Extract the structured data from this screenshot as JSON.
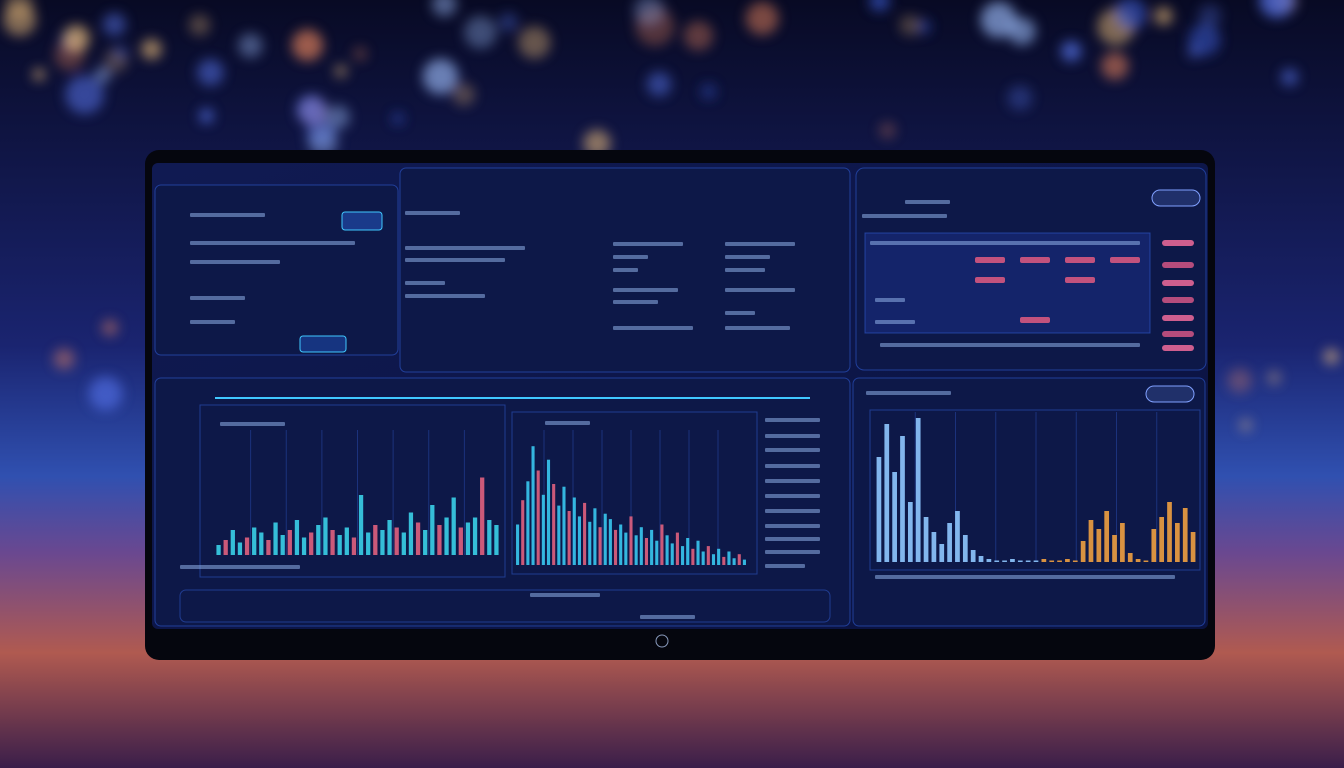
{
  "charts": [
    {
      "type": "bar",
      "color": "#3ad0e8",
      "accent": "#e0607e",
      "ylim": [
        0,
        100
      ],
      "values": [
        8,
        12,
        20,
        10,
        14,
        22,
        18,
        12,
        26,
        16,
        20,
        28,
        14,
        18,
        24,
        30,
        20,
        16,
        22,
        14,
        48,
        18,
        24,
        20,
        28,
        22,
        18,
        34,
        26,
        20,
        40,
        24,
        30,
        46,
        22,
        26,
        30,
        62,
        28,
        24
      ]
    },
    {
      "type": "bar",
      "color": "#38c8f0",
      "accent": "#e0607e",
      "ylim": [
        0,
        100
      ],
      "values": [
        30,
        48,
        62,
        88,
        70,
        52,
        78,
        60,
        44,
        58,
        40,
        50,
        36,
        46,
        32,
        42,
        28,
        38,
        34,
        26,
        30,
        24,
        36,
        22,
        28,
        20,
        26,
        18,
        30,
        22,
        16,
        24,
        14,
        20,
        12,
        18,
        10,
        14,
        8,
        12,
        6,
        10,
        5,
        8,
        4
      ]
    },
    {
      "type": "bar",
      "color": "#8fc8ff",
      "accent": "#f0a040",
      "ylim": [
        0,
        100
      ],
      "values": [
        70,
        92,
        60,
        84,
        40,
        96,
        30,
        20,
        12,
        26,
        34,
        18,
        8,
        4,
        2,
        1,
        1,
        2,
        1,
        1,
        1,
        2,
        1,
        1,
        2,
        1,
        14,
        28,
        22,
        34,
        18,
        26,
        6,
        2,
        1,
        22,
        30,
        40,
        26,
        36,
        20
      ]
    }
  ]
}
